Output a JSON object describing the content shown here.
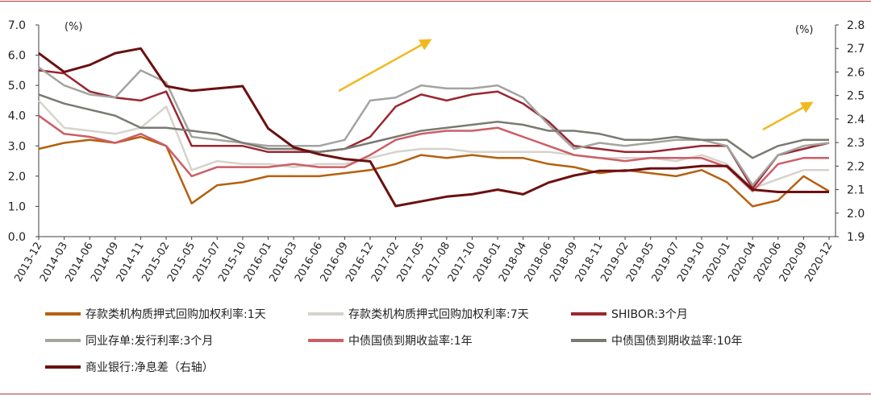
{
  "chart_data": {
    "type": "line",
    "left_axis_unit": "(%)",
    "right_axis_unit": "(%)",
    "y_left_ticks": [
      "0.0",
      "1.0",
      "2.0",
      "3.0",
      "4.0",
      "5.0",
      "6.0",
      "7.0"
    ],
    "y_right_ticks": [
      "1.9",
      "2.0",
      "2.1",
      "2.2",
      "2.3",
      "2.4",
      "2.5",
      "2.6",
      "2.7",
      "2.8"
    ],
    "ylim_left": [
      0,
      7
    ],
    "ylim_right": [
      1.9,
      2.8
    ],
    "x_ticks": [
      "2013-12",
      "2014-03",
      "2014-06",
      "2014-09",
      "2014-11",
      "2015-02",
      "2015-05",
      "2015-07",
      "2015-10",
      "2016-01",
      "2016-03",
      "2016-06",
      "2016-09",
      "2016-12",
      "2017-02",
      "2017-05",
      "2017-08",
      "2017-10",
      "2018-01",
      "2018-04",
      "2018-06",
      "2018-09",
      "2018-11",
      "2019-02",
      "2019-05",
      "2019-07",
      "2019-10",
      "2020-01",
      "2020-04",
      "2020-06",
      "2020-09",
      "2020-12"
    ],
    "series": [
      {
        "name": "存款类机构质押式回购加权利率:1天",
        "color": "#b5600f",
        "axis": "left",
        "values": [
          2.9,
          3.1,
          3.2,
          3.1,
          3.3,
          3.0,
          1.1,
          1.7,
          1.8,
          2.0,
          2.0,
          2.0,
          2.1,
          2.2,
          2.4,
          2.7,
          2.6,
          2.7,
          2.6,
          2.6,
          2.4,
          2.3,
          2.1,
          2.2,
          2.1,
          2.0,
          2.2,
          1.8,
          1.0,
          1.2,
          2.0,
          1.5
        ]
      },
      {
        "name": "存款类机构质押式回购加权利率:7天",
        "color": "#d6d3cc",
        "axis": "left",
        "values": [
          4.5,
          3.6,
          3.5,
          3.4,
          3.6,
          4.3,
          2.2,
          2.5,
          2.4,
          2.4,
          2.3,
          2.4,
          2.4,
          2.6,
          2.8,
          2.9,
          2.9,
          2.8,
          2.8,
          2.8,
          2.8,
          2.7,
          2.6,
          2.6,
          2.6,
          2.5,
          2.7,
          2.4,
          1.6,
          1.9,
          2.2,
          2.2
        ]
      },
      {
        "name": "SHIBOR:3个月",
        "color": "#9a2730",
        "axis": "left",
        "values": [
          5.5,
          5.4,
          4.8,
          4.6,
          4.5,
          4.8,
          3.0,
          3.0,
          3.0,
          2.8,
          2.8,
          2.8,
          2.9,
          3.3,
          4.3,
          4.7,
          4.5,
          4.7,
          4.8,
          4.4,
          3.8,
          3.0,
          2.9,
          2.8,
          2.8,
          2.9,
          3.0,
          3.0,
          1.6,
          2.7,
          2.9,
          3.1
        ]
      },
      {
        "name": "同业存单:发行利率:3个月",
        "color": "#a3a3a0",
        "axis": "left",
        "values": [
          5.6,
          5.0,
          4.7,
          4.6,
          5.5,
          5.1,
          3.3,
          3.2,
          3.1,
          3.0,
          3.0,
          3.0,
          3.2,
          4.5,
          4.6,
          5.0,
          4.9,
          4.9,
          5.0,
          4.6,
          3.7,
          2.9,
          3.1,
          3.0,
          3.1,
          3.2,
          3.2,
          3.0,
          1.7,
          2.7,
          3.0,
          3.1
        ]
      },
      {
        "name": "中债国债到期收益率:1年",
        "color": "#cc5e66",
        "axis": "left",
        "values": [
          4.0,
          3.4,
          3.3,
          3.1,
          3.4,
          3.0,
          2.0,
          2.3,
          2.3,
          2.3,
          2.4,
          2.3,
          2.3,
          2.7,
          3.2,
          3.4,
          3.5,
          3.5,
          3.6,
          3.3,
          3.0,
          2.7,
          2.6,
          2.5,
          2.6,
          2.6,
          2.6,
          2.3,
          1.5,
          2.4,
          2.6,
          2.6
        ]
      },
      {
        "name": "中债国债到期收益率:10年",
        "color": "#7a7a74",
        "axis": "left",
        "values": [
          4.7,
          4.4,
          4.2,
          4.0,
          3.6,
          3.6,
          3.5,
          3.4,
          3.1,
          2.9,
          2.9,
          2.8,
          2.9,
          3.1,
          3.3,
          3.5,
          3.6,
          3.7,
          3.8,
          3.7,
          3.5,
          3.5,
          3.4,
          3.2,
          3.2,
          3.3,
          3.2,
          3.2,
          2.6,
          3.0,
          3.2,
          3.2
        ]
      },
      {
        "name": "商业银行:净息差（右轴）",
        "color": "#6b1010",
        "axis": "right",
        "values": [
          2.68,
          2.6,
          2.63,
          2.68,
          2.7,
          2.54,
          2.52,
          2.53,
          2.54,
          2.36,
          2.28,
          2.25,
          2.23,
          2.22,
          2.03,
          2.05,
          2.07,
          2.08,
          2.1,
          2.08,
          2.13,
          2.16,
          2.18,
          2.18,
          2.19,
          2.19,
          2.2,
          2.2,
          2.1,
          2.09,
          2.09,
          2.09
        ]
      }
    ],
    "annotations": [
      "arrow-up-2016-12",
      "arrow-up-2020-09"
    ],
    "grid": false,
    "legend_position": "bottom"
  },
  "legend": {
    "items": [
      {
        "label": "存款类机构质押式回购加权利率:1天",
        "color": "#b5600f"
      },
      {
        "label": "存款类机构质押式回购加权利率:7天",
        "color": "#d6d3cc"
      },
      {
        "label": "SHIBOR:3个月",
        "color": "#9a2730"
      },
      {
        "label": "同业存单:发行利率:3个月",
        "color": "#a3a3a0"
      },
      {
        "label": "中债国债到期收益率:1年",
        "color": "#cc5e66"
      },
      {
        "label": "中债国债到期收益率:10年",
        "color": "#7a7a74"
      },
      {
        "label": "商业银行:净息差（右轴）",
        "color": "#6b1010"
      }
    ]
  },
  "colors": {
    "frame": "#b23a3a",
    "arrow": "#f2b820",
    "axis": "#404040"
  }
}
